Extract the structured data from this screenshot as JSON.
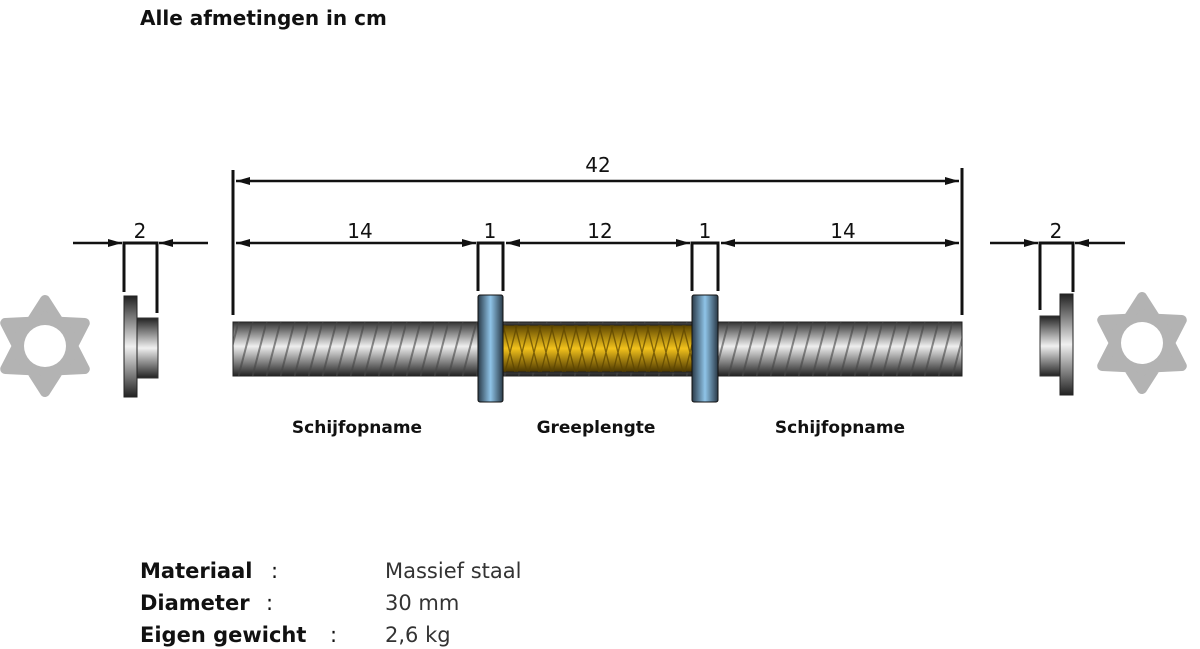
{
  "title": "Alle afmetingen in cm",
  "dimensions": {
    "total": "42",
    "left_sleeve": "14",
    "left_collar": "1",
    "grip": "12",
    "right_collar": "1",
    "right_sleeve": "14",
    "left_washer": "2",
    "right_washer": "2"
  },
  "labels": {
    "left_section": "Schijfopname",
    "middle_section": "Greeplengte",
    "right_section": "Schijfopname"
  },
  "specs": [
    {
      "key": "Materiaal",
      "colon": ":",
      "value": "Massief staal"
    },
    {
      "key": "Diameter",
      "colon": ":",
      "value": "30 mm"
    },
    {
      "key": "Eigen gewicht",
      "colon": ":",
      "value": "2,6 kg"
    }
  ],
  "colors": {
    "grip": "#c9a018",
    "collar": "#7fb2d6",
    "bar": "#9a9a9a",
    "star_nut": "#b3b3b3"
  }
}
